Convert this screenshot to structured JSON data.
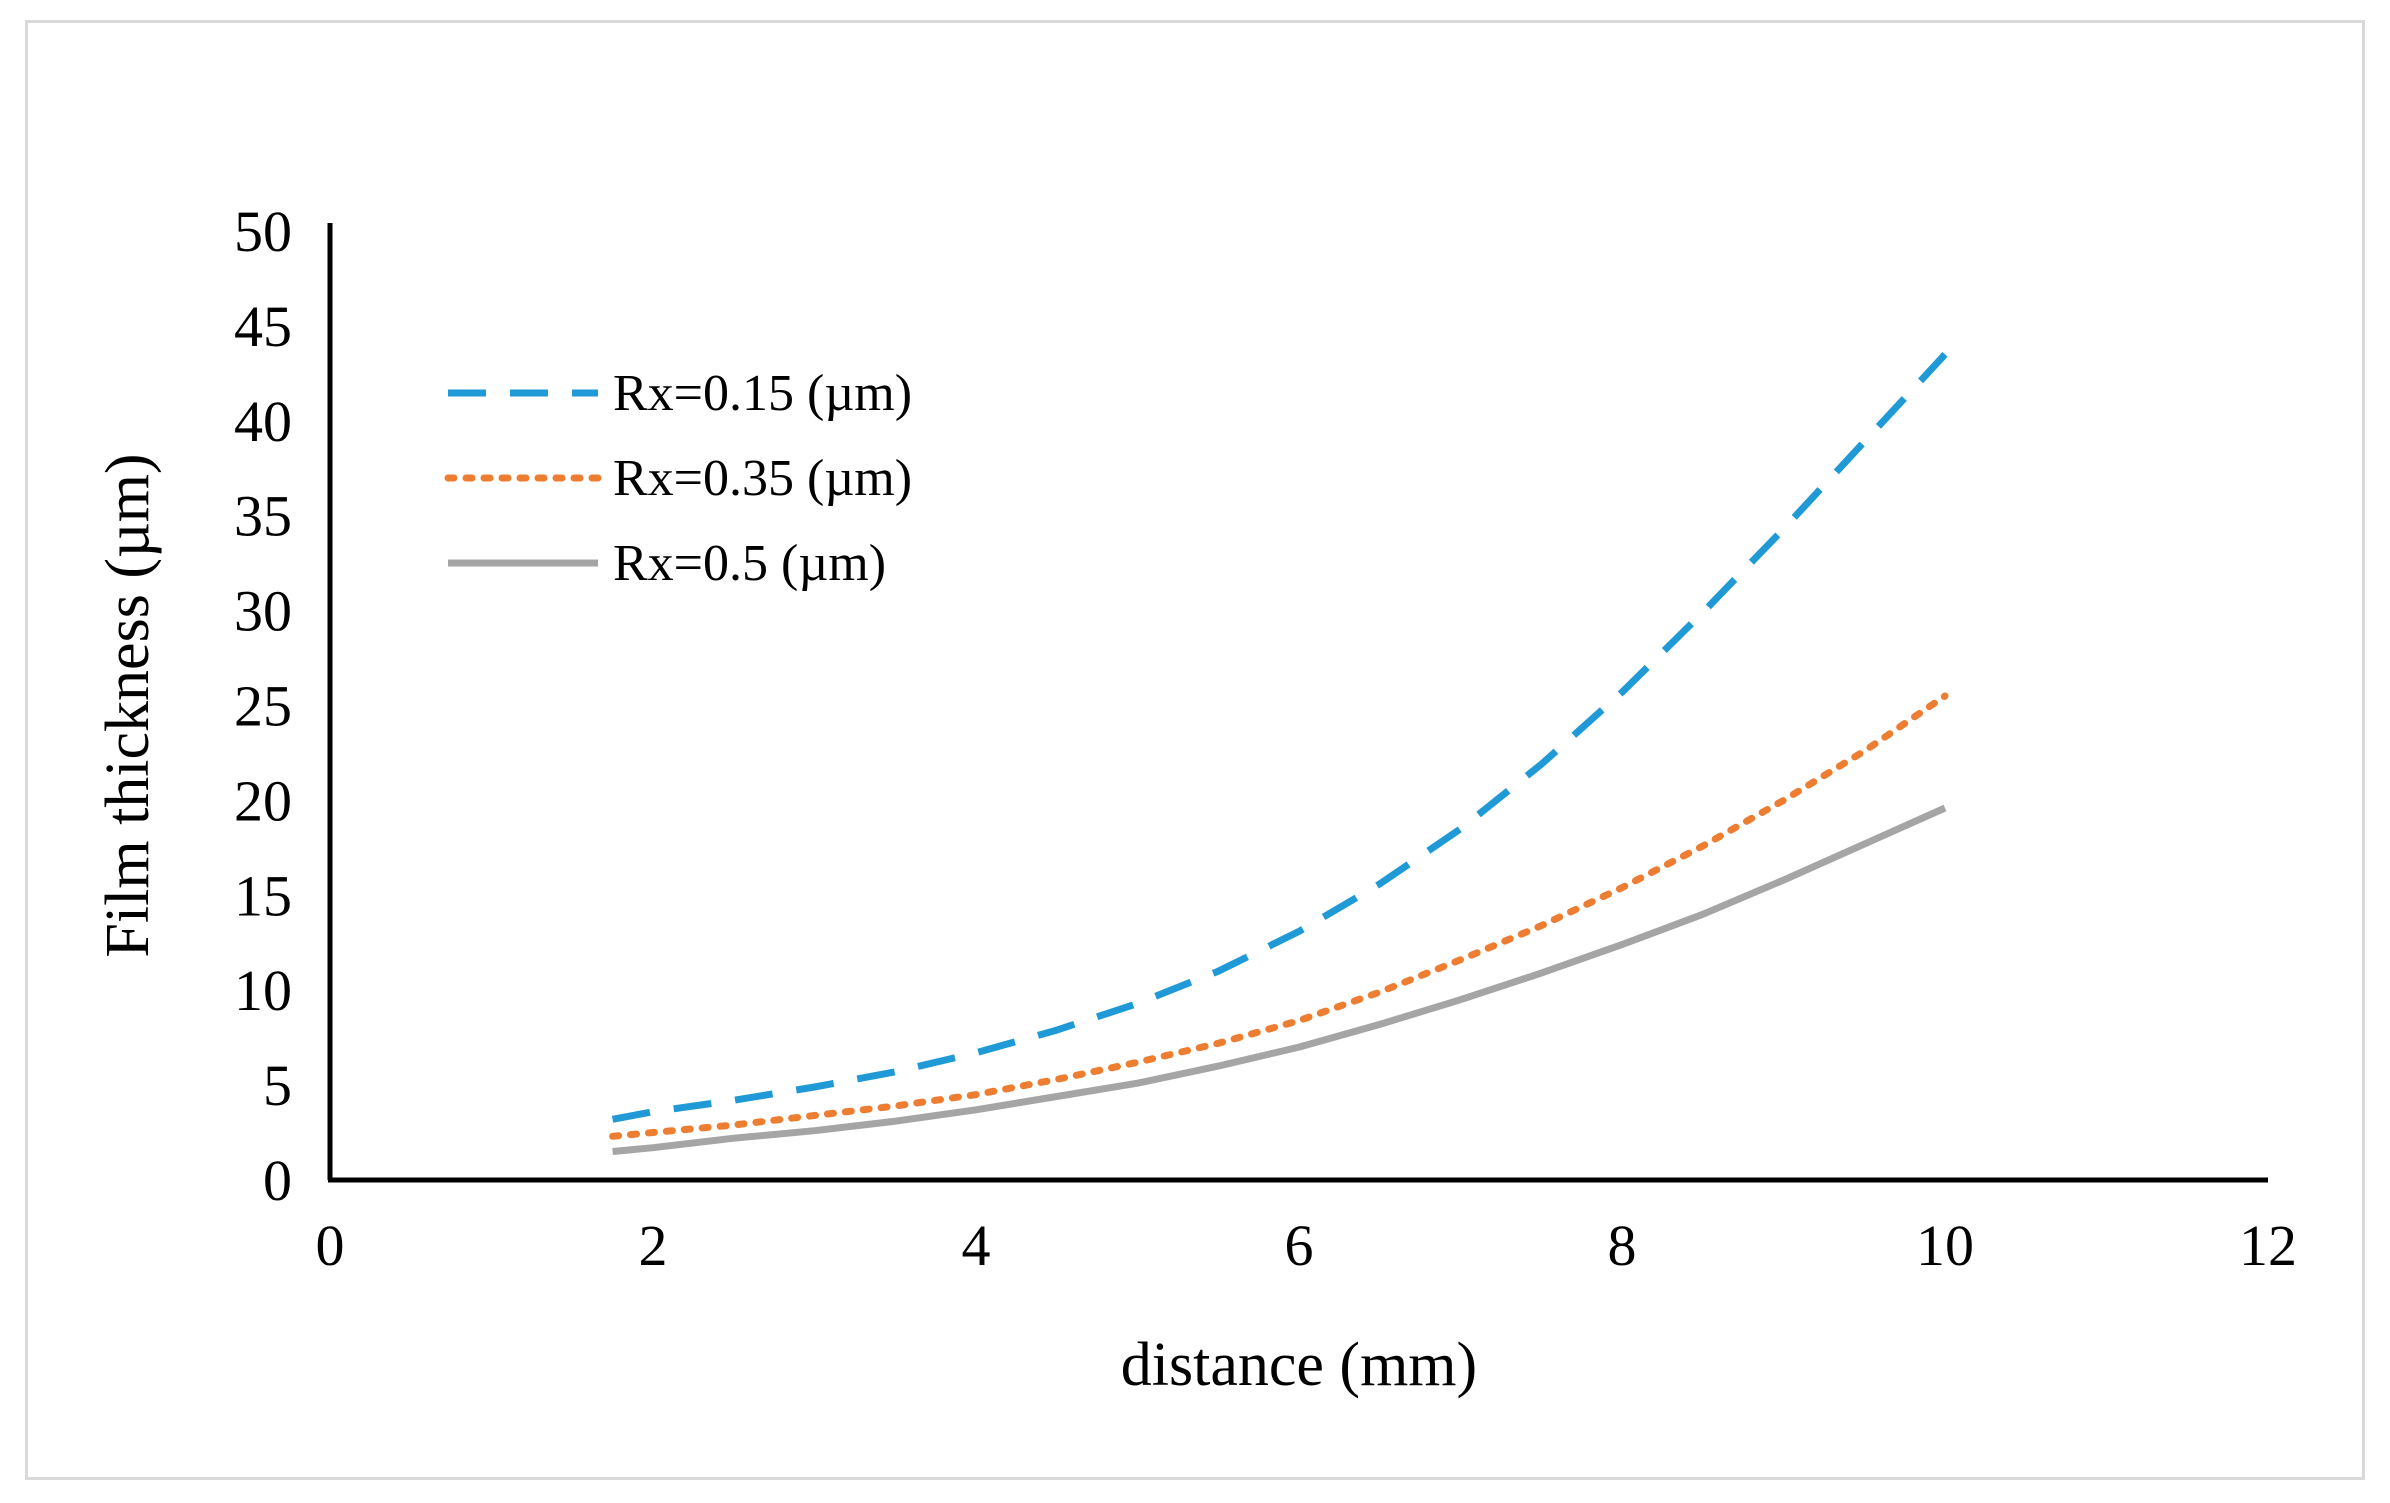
{
  "chart_data": {
    "type": "line",
    "title": "",
    "xlabel": "distance (mm)",
    "ylabel": "Film thickness (µm)",
    "xlim": [
      0,
      12
    ],
    "ylim": [
      0,
      50
    ],
    "xticks": [
      0,
      2,
      4,
      6,
      8,
      10,
      12
    ],
    "yticks": [
      0,
      5,
      10,
      15,
      20,
      25,
      30,
      35,
      40,
      45,
      50
    ],
    "grid": false,
    "legend_position": "top-left",
    "series": [
      {
        "name": "Rx=0.15 (µm)",
        "style": "dashed",
        "color": "#1f9ad6",
        "x": [
          1.75,
          2,
          2.5,
          3,
          3.5,
          4,
          4.5,
          5,
          5.5,
          6,
          6.5,
          7,
          7.5,
          8,
          8.5,
          9,
          9.5,
          10
        ],
        "y": [
          3.2,
          3.6,
          4.2,
          4.9,
          5.7,
          6.7,
          7.9,
          9.3,
          11.0,
          13.1,
          15.6,
          18.5,
          21.9,
          25.7,
          29.9,
          34.3,
          38.9,
          43.5
        ]
      },
      {
        "name": "Rx=0.35 (µm)",
        "style": "dotted",
        "color": "#ed7d31",
        "x": [
          1.75,
          2,
          2.5,
          3,
          3.5,
          4,
          4.5,
          5,
          5.5,
          6,
          6.5,
          7,
          7.5,
          8,
          8.5,
          9,
          9.5,
          10
        ],
        "y": [
          2.3,
          2.5,
          2.9,
          3.4,
          3.9,
          4.5,
          5.3,
          6.2,
          7.2,
          8.4,
          9.9,
          11.6,
          13.4,
          15.4,
          17.6,
          20.0,
          22.6,
          25.5
        ]
      },
      {
        "name": "Rx=0.5 (µm)",
        "style": "solid",
        "color": "#a5a5a5",
        "x": [
          1.75,
          2,
          2.5,
          3,
          3.5,
          4,
          4.5,
          5,
          5.5,
          6,
          6.5,
          7,
          7.5,
          8,
          8.5,
          9,
          9.5,
          10
        ],
        "y": [
          1.5,
          1.7,
          2.2,
          2.6,
          3.1,
          3.7,
          4.4,
          5.1,
          6.0,
          7.0,
          8.2,
          9.5,
          10.9,
          12.4,
          14.0,
          15.8,
          17.7,
          19.6
        ]
      }
    ]
  }
}
